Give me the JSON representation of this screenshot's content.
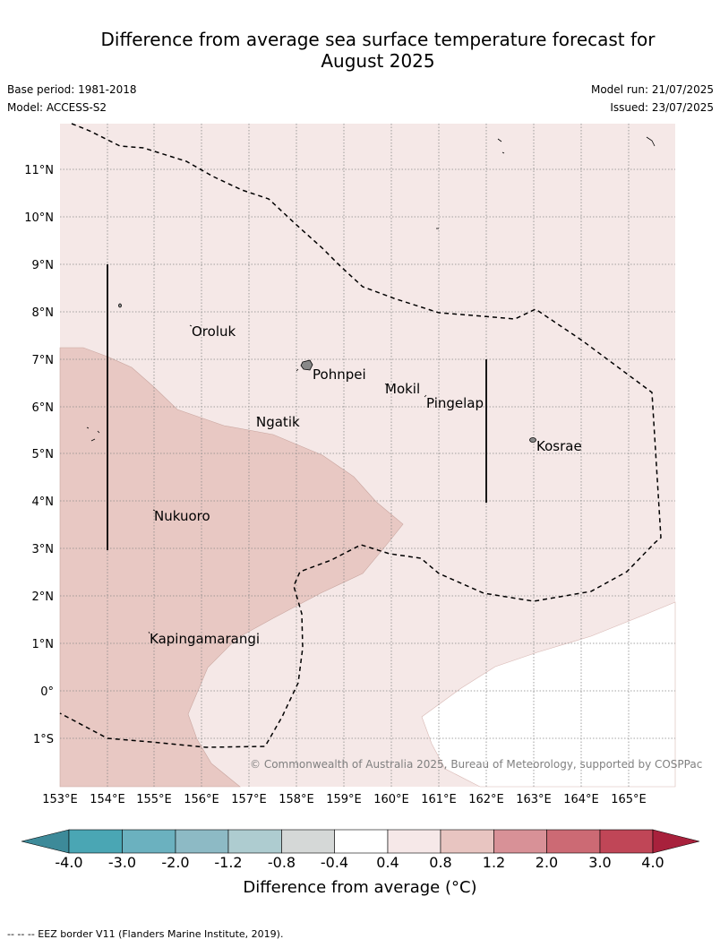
{
  "header": {
    "title_line1": "Difference from average sea surface temperature forecast for",
    "title_line2": "August 2025",
    "base_period": "Base period: 1981-2018",
    "model": "Model: ACCESS-S2",
    "model_run": "Model run: 21/07/2025",
    "issued": "Issued: 23/07/2025"
  },
  "map": {
    "lon_labels": [
      "153°E",
      "154°E",
      "155°E",
      "156°E",
      "157°E",
      "158°E",
      "159°E",
      "160°E",
      "161°E",
      "162°E",
      "163°E",
      "164°E",
      "165°E"
    ],
    "lat_labels": [
      "11°N",
      "10°N",
      "9°N",
      "8°N",
      "7°N",
      "6°N",
      "5°N",
      "4°N",
      "3°N",
      "2°N",
      "1°N",
      "0°",
      "1°S"
    ],
    "places": [
      "Oroluk",
      "Pohnpei",
      "Mokil",
      "Pingelap",
      "Ngatik",
      "Kosrae",
      "Nukuoro",
      "Kapingamarangi"
    ],
    "copyright": "© Commonwealth of Australia 2025, Bureau of Meteorology, supported by COSPPac",
    "colors": {
      "slight_warm": "#f5e8e7",
      "warm": "#e8c8c3",
      "neutral": "#ffffff"
    }
  },
  "colorbar": {
    "ticks": [
      "-4.0",
      "-3.0",
      "-2.0",
      "-1.2",
      "-0.8",
      "-0.4",
      "0.4",
      "0.8",
      "1.2",
      "2.0",
      "3.0",
      "4.0"
    ],
    "colors": [
      "#3d8a99",
      "#4aa6b4",
      "#6bb1bf",
      "#8dbac5",
      "#aeccd0",
      "#d5d8d7",
      "#ffffff",
      "#f6e8e8",
      "#e8c5c1",
      "#d89197",
      "#cc6a74",
      "#c04657",
      "#a8213c"
    ],
    "label": "Difference from average (°C)"
  },
  "footnote": "--  --  -- EEZ border V11 (Flanders Marine Institute, 2019)."
}
